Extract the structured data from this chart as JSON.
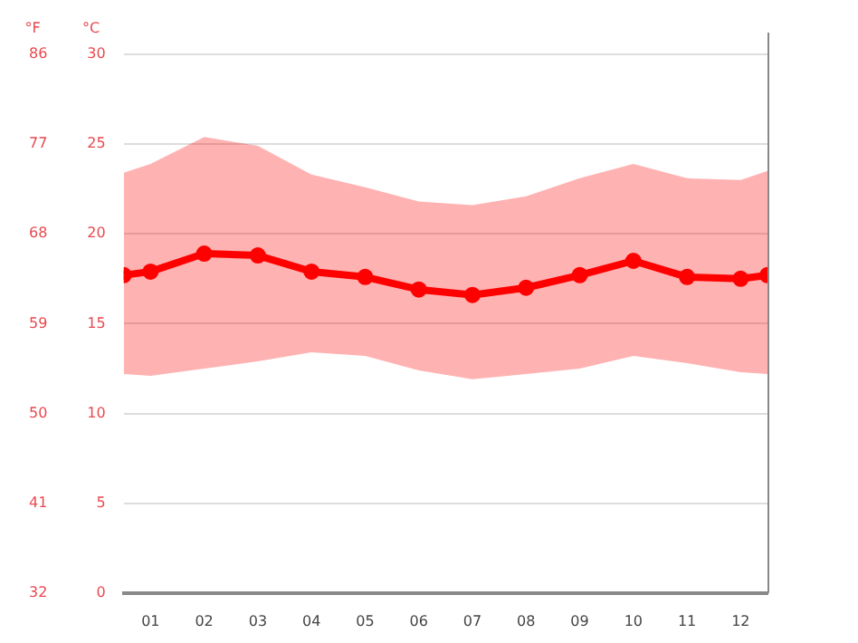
{
  "chart_data": {
    "type": "line",
    "x": [
      0.5,
      1,
      2,
      3,
      4,
      5,
      6,
      7,
      8,
      9,
      10,
      11,
      12,
      12.5
    ],
    "xlim": [
      0.5,
      12.5
    ],
    "xticks": [
      {
        "value": 1,
        "label": "01"
      },
      {
        "value": 2,
        "label": "02"
      },
      {
        "value": 3,
        "label": "03"
      },
      {
        "value": 4,
        "label": "04"
      },
      {
        "value": 5,
        "label": "05"
      },
      {
        "value": 6,
        "label": "06"
      },
      {
        "value": 7,
        "label": "07"
      },
      {
        "value": 8,
        "label": "08"
      },
      {
        "value": 9,
        "label": "09"
      },
      {
        "value": 10,
        "label": "10"
      },
      {
        "value": 11,
        "label": "11"
      },
      {
        "value": 12,
        "label": "12"
      }
    ],
    "ylabel": "°C",
    "y2label": "°F",
    "ylim": [
      0,
      30
    ],
    "yticks": [
      0,
      5,
      10,
      15,
      20,
      25,
      30
    ],
    "y2lim": [
      32,
      86
    ],
    "y2ticks": [
      32,
      41,
      50,
      59,
      68,
      77,
      86
    ],
    "grid": "y",
    "legend": false,
    "marker": "circle",
    "line_style": "solid",
    "series": [
      {
        "color": "#ff0000",
        "values": [
          17.7,
          17.9,
          18.9,
          18.8,
          17.9,
          17.6,
          16.9,
          16.6,
          17.0,
          17.7,
          18.5,
          17.6,
          17.5,
          17.7
        ],
        "lower": [
          12.2,
          12.1,
          12.5,
          12.9,
          13.4,
          13.2,
          12.4,
          11.9,
          12.2,
          12.5,
          13.2,
          12.8,
          12.3,
          12.2
        ],
        "upper": [
          23.4,
          23.9,
          25.4,
          24.9,
          23.3,
          22.6,
          21.8,
          21.6,
          22.1,
          23.1,
          23.9,
          23.1,
          23.0,
          23.5
        ]
      }
    ]
  }
}
